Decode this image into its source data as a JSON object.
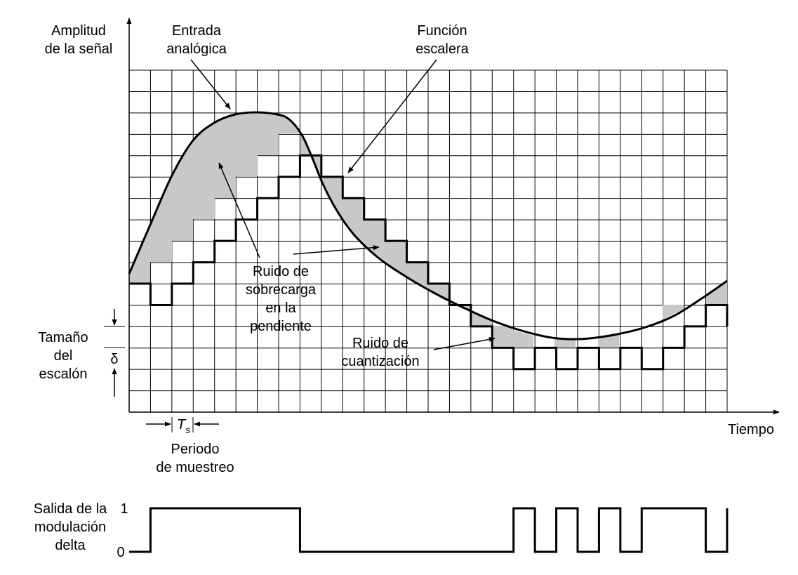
{
  "labels": {
    "y_axis_line1": "Amplitud",
    "y_axis_line2": "de la señal",
    "analog_input_line1": "Entrada",
    "analog_input_line2": "analógica",
    "staircase_line1": "Función",
    "staircase_line2": "escalera",
    "slope_overload_line1": "Ruido de",
    "slope_overload_line2": "sobrecarga",
    "slope_overload_line3": "en la",
    "slope_overload_line4": "pendiente",
    "granular_noise_line1": "Ruido de",
    "granular_noise_line2": "cuantización",
    "step_size_line1": "Tamaño",
    "step_size_line2": "del",
    "step_size_line3": "escalón",
    "delta_symbol": "δ",
    "ts_symbol": "T",
    "ts_subscript": "s",
    "sampling_period_line1": "Periodo",
    "sampling_period_line2": "de muestreo",
    "time_axis": "Tiempo",
    "output_line1": "Salida de la",
    "output_line2": "modulación",
    "output_line3": "delta",
    "output_high": "1",
    "output_low": "0"
  },
  "colors": {
    "ink": "#000000",
    "noise_fill": "#c8c8c8",
    "background": "#ffffff"
  },
  "delta_bits": [
    0,
    1,
    1,
    1,
    1,
    1,
    1,
    1,
    0,
    0,
    0,
    0,
    0,
    0,
    0,
    0,
    0,
    0,
    1,
    0,
    1,
    0,
    1,
    0,
    1,
    1,
    1,
    0
  ]
}
